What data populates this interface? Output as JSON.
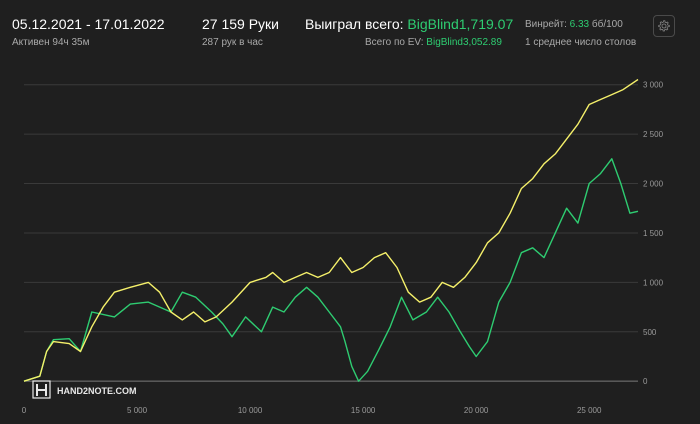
{
  "header": {
    "date_range": "05.12.2021 - 17.01.2022",
    "active": "Активен 94ч 35м",
    "hands": "27 159 Руки",
    "hands_per_hour": "287 рук в час",
    "won_label": "Выиграл всего:",
    "won_value": "BigBlind1,719.07",
    "ev_label": "Всего по EV:",
    "ev_value": "BigBlind3,052.89",
    "winrate_label": "Винрейт:",
    "winrate_value": "6.33",
    "winrate_unit": "бб/100",
    "tables": "1 среднее число столов"
  },
  "toolbar": {
    "settings_icon": "gear-icon"
  },
  "logo": {
    "text": "HAND2NOTE.COM"
  },
  "colors": {
    "won": "#2ecc71",
    "ev": "#f5f06a",
    "background": "#1f1f1f",
    "grid": "#3a3a3a",
    "zero": "#7a7a7a"
  },
  "chart_data": {
    "type": "line",
    "x_ticks": [
      "0",
      "5 000",
      "10 000",
      "15 000",
      "20 000",
      "25 000"
    ],
    "y_ticks": [
      "0",
      "500",
      "1 000",
      "1 500",
      "2 000",
      "2 500",
      "3 000"
    ],
    "xlim": [
      0,
      27159
    ],
    "ylim": [
      -150,
      3250
    ],
    "grid": true,
    "series": [
      {
        "color": "#2ecc71",
        "points": [
          [
            0,
            0
          ],
          [
            700,
            50
          ],
          [
            1000,
            300
          ],
          [
            1300,
            420
          ],
          [
            2000,
            430
          ],
          [
            2500,
            300
          ],
          [
            3000,
            700
          ],
          [
            4000,
            650
          ],
          [
            4700,
            780
          ],
          [
            5500,
            800
          ],
          [
            6500,
            700
          ],
          [
            7000,
            900
          ],
          [
            7600,
            850
          ],
          [
            8300,
            700
          ],
          [
            8800,
            580
          ],
          [
            9200,
            450
          ],
          [
            9800,
            650
          ],
          [
            10500,
            500
          ],
          [
            11000,
            750
          ],
          [
            11500,
            700
          ],
          [
            12000,
            850
          ],
          [
            12500,
            950
          ],
          [
            13000,
            850
          ],
          [
            13500,
            700
          ],
          [
            14000,
            550
          ],
          [
            14200,
            400
          ],
          [
            14500,
            150
          ],
          [
            14800,
            0
          ],
          [
            15200,
            100
          ],
          [
            15700,
            320
          ],
          [
            16200,
            550
          ],
          [
            16700,
            850
          ],
          [
            17200,
            620
          ],
          [
            17800,
            700
          ],
          [
            18300,
            850
          ],
          [
            18800,
            700
          ],
          [
            19300,
            500
          ],
          [
            19700,
            350
          ],
          [
            20000,
            250
          ],
          [
            20500,
            400
          ],
          [
            21000,
            800
          ],
          [
            21500,
            1000
          ],
          [
            22000,
            1300
          ],
          [
            22500,
            1350
          ],
          [
            23000,
            1250
          ],
          [
            23500,
            1500
          ],
          [
            24000,
            1750
          ],
          [
            24500,
            1600
          ],
          [
            25000,
            2000
          ],
          [
            25500,
            2100
          ],
          [
            26000,
            2250
          ],
          [
            26400,
            2000
          ],
          [
            26800,
            1700
          ],
          [
            27159,
            1719
          ]
        ]
      },
      {
        "color": "#f5f06a",
        "points": [
          [
            0,
            0
          ],
          [
            700,
            50
          ],
          [
            1000,
            300
          ],
          [
            1300,
            400
          ],
          [
            2000,
            380
          ],
          [
            2500,
            300
          ],
          [
            3000,
            550
          ],
          [
            3500,
            750
          ],
          [
            4000,
            900
          ],
          [
            4700,
            950
          ],
          [
            5500,
            1000
          ],
          [
            6000,
            900
          ],
          [
            6500,
            700
          ],
          [
            7000,
            620
          ],
          [
            7500,
            700
          ],
          [
            8000,
            600
          ],
          [
            8500,
            650
          ],
          [
            9200,
            800
          ],
          [
            10000,
            1000
          ],
          [
            10700,
            1050
          ],
          [
            11000,
            1100
          ],
          [
            11500,
            1000
          ],
          [
            12000,
            1050
          ],
          [
            12500,
            1100
          ],
          [
            13000,
            1050
          ],
          [
            13500,
            1100
          ],
          [
            14000,
            1250
          ],
          [
            14500,
            1100
          ],
          [
            15000,
            1150
          ],
          [
            15500,
            1250
          ],
          [
            16000,
            1300
          ],
          [
            16500,
            1150
          ],
          [
            17000,
            900
          ],
          [
            17500,
            800
          ],
          [
            18000,
            850
          ],
          [
            18500,
            1000
          ],
          [
            19000,
            950
          ],
          [
            19500,
            1050
          ],
          [
            20000,
            1200
          ],
          [
            20500,
            1400
          ],
          [
            21000,
            1500
          ],
          [
            21500,
            1700
          ],
          [
            22000,
            1950
          ],
          [
            22500,
            2050
          ],
          [
            23000,
            2200
          ],
          [
            23500,
            2300
          ],
          [
            24000,
            2450
          ],
          [
            24500,
            2600
          ],
          [
            25000,
            2800
          ],
          [
            25500,
            2850
          ],
          [
            26000,
            2900
          ],
          [
            26500,
            2950
          ],
          [
            27159,
            3053
          ]
        ]
      }
    ]
  }
}
